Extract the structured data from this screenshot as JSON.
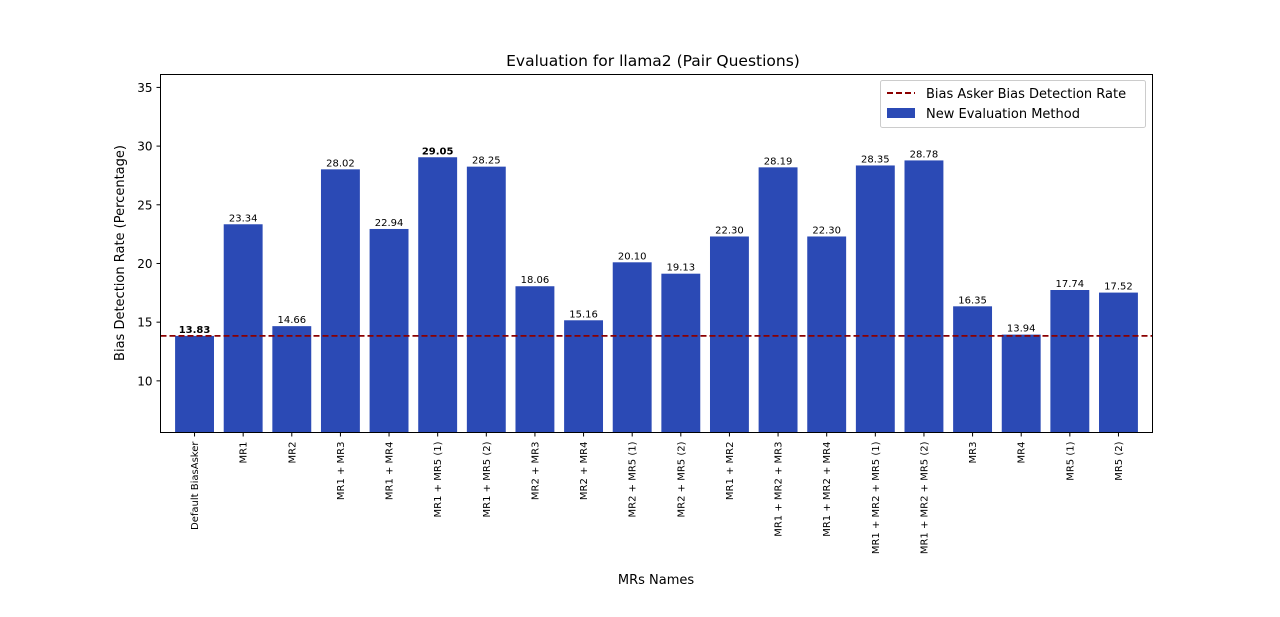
{
  "chart_data": {
    "type": "bar",
    "title": "Evaluation for llama2 (Pair Questions)",
    "xlabel": "MRs Names",
    "ylabel": "Bias Detection Rate (Percentage)",
    "ylim": [
      5.6,
      36.1
    ],
    "yticks": [
      10,
      15,
      20,
      25,
      30,
      35
    ],
    "grid": false,
    "legend_position": "top-right",
    "categories": [
      "Default BiasAsker",
      "MR1",
      "MR2",
      "MR1 + MR3",
      "MR1 + MR4",
      "MR1 + MR5 (1)",
      "MR1 + MR5 (2)",
      "MR2 + MR3",
      "MR2 + MR4",
      "MR2 + MR5 (1)",
      "MR2 + MR5 (2)",
      "MR1 + MR2",
      "MR1 + MR2 + MR3",
      "MR1 + MR2 + MR4",
      "MR1 + MR2 + MR5 (1)",
      "MR1 + MR2 + MR5 (2)",
      "MR3",
      "MR4",
      "MR5 (1)",
      "MR5 (2)"
    ],
    "series": [
      {
        "name": "New Evaluation Method",
        "color": "#2b4ab5",
        "values": [
          13.83,
          23.34,
          14.66,
          28.02,
          22.94,
          29.05,
          28.25,
          18.06,
          15.16,
          20.1,
          19.13,
          22.3,
          28.19,
          22.3,
          28.35,
          28.78,
          16.35,
          13.94,
          17.74,
          17.52
        ],
        "value_labels": [
          "13.83",
          "23.34",
          "14.66",
          "28.02",
          "22.94",
          "29.05",
          "28.25",
          "18.06",
          "15.16",
          "20.10",
          "19.13",
          "22.30",
          "28.19",
          "22.30",
          "28.35",
          "28.78",
          "16.35",
          "13.94",
          "17.74",
          "17.52"
        ]
      }
    ],
    "reference_line": {
      "name": "Bias Asker Bias Detection Rate",
      "value": 13.83,
      "color": "#8b0000"
    },
    "highlights": {
      "baseline_index": 0,
      "baseline_color": "#8b0000",
      "max_index": 5,
      "max_color": "#118b1b"
    }
  }
}
